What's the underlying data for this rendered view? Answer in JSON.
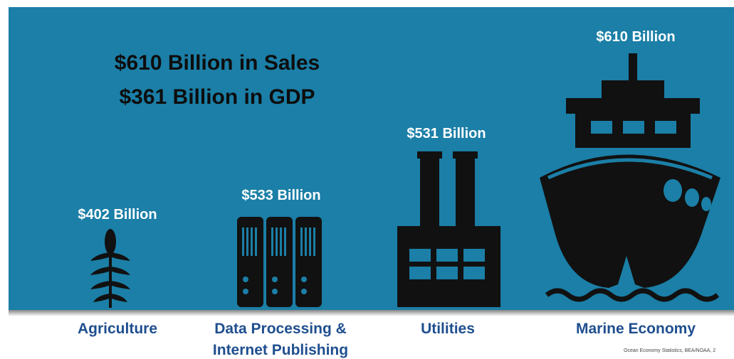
{
  "headline": [
    "$610 Billion in Sales",
    "$361 Billion in GDP"
  ],
  "items": [
    {
      "value_label": "$402 Billion",
      "label": "Agriculture"
    },
    {
      "value_label": "$533 Billion",
      "label": [
        "Data Processing &",
        "Internet Publishing"
      ]
    },
    {
      "value_label": "$531 Billion",
      "label": "Utilities"
    },
    {
      "value_label": "$610 Billion",
      "label": "Marine Economy"
    }
  ],
  "source": "Ocean Economy Statistics, BEA/NOAA, 2"
}
